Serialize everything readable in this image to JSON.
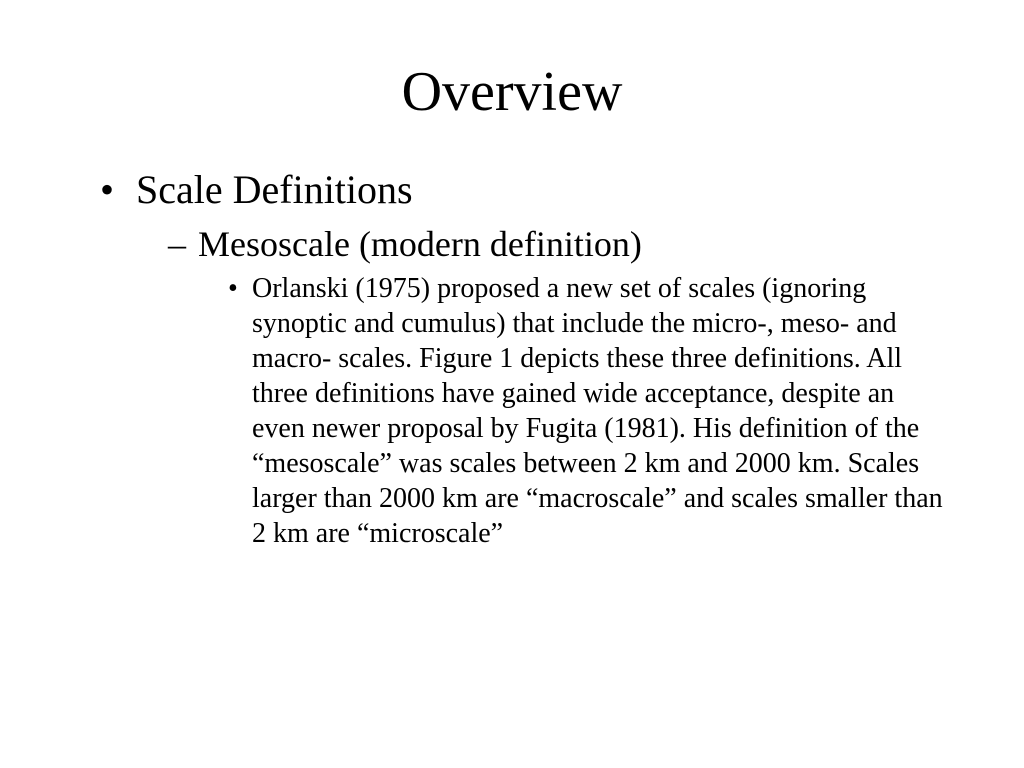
{
  "slide": {
    "title": "Overview",
    "title_fontsize": 56,
    "background_color": "#ffffff",
    "text_color": "#000000",
    "font_family": "Times New Roman",
    "bullets": {
      "level1": {
        "text": "Scale Definitions",
        "fontsize": 40,
        "marker": "•"
      },
      "level2": {
        "text": "Mesoscale (modern definition)",
        "fontsize": 36,
        "marker": "–"
      },
      "level3": {
        "text": "Orlanski (1975) proposed a new set of scales (ignoring synoptic and cumulus) that include the micro-, meso- and macro- scales.  Figure 1 depicts these three definitions.  All three definitions have gained wide acceptance, despite an even newer proposal by Fugita (1981).  His definition of the “mesoscale” was scales between 2 km and 2000 km.  Scales larger than 2000 km are “macroscale” and scales smaller than 2 km are “microscale”",
        "fontsize": 28,
        "marker": "•"
      }
    }
  }
}
